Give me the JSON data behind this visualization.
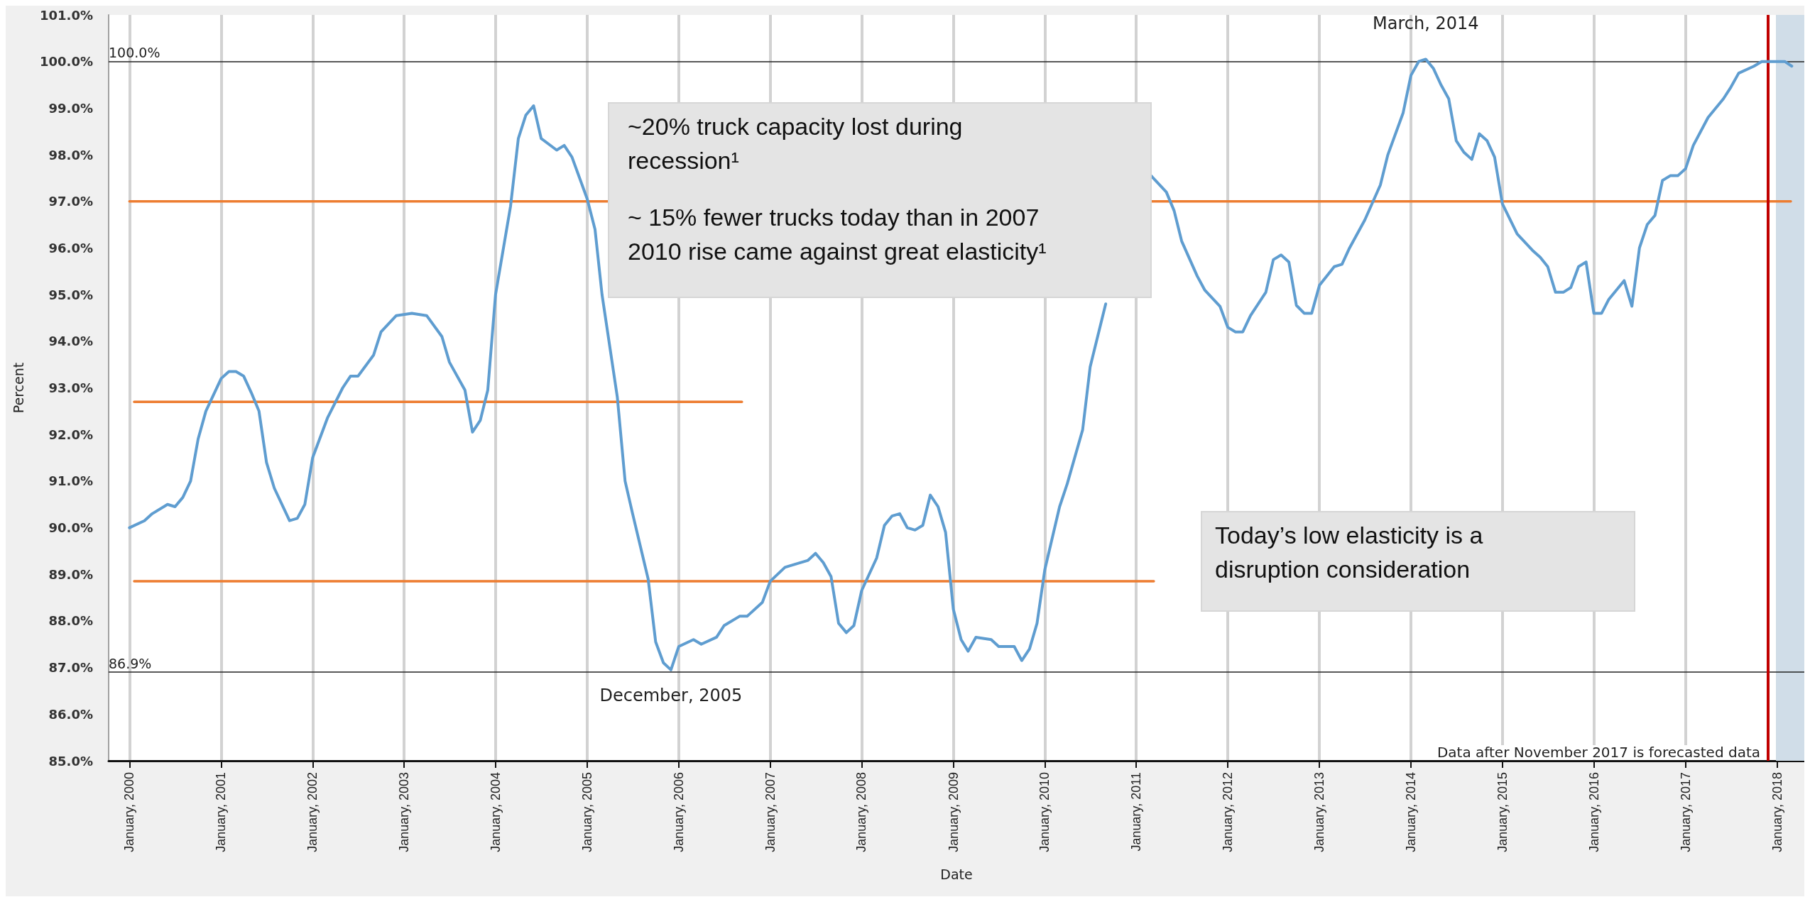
{
  "chart_data": {
    "type": "line",
    "xlabel": "Date",
    "ylabel": "Percent",
    "xlim": [
      "1999-10-10",
      "2018-04-20"
    ],
    "ylim": [
      85,
      101
    ],
    "xticks": [
      {
        "value": "2000-01-01",
        "label": "January, 2000"
      },
      {
        "value": "2001-01-01",
        "label": "January, 2001"
      },
      {
        "value": "2002-01-01",
        "label": "January, 2002"
      },
      {
        "value": "2003-01-01",
        "label": "January, 2003"
      },
      {
        "value": "2004-01-01",
        "label": "January, 2004"
      },
      {
        "value": "2005-01-01",
        "label": "January, 2005"
      },
      {
        "value": "2006-01-01",
        "label": "January, 2006"
      },
      {
        "value": "2007-01-01",
        "label": "January, 2007"
      },
      {
        "value": "2008-01-01",
        "label": "January, 2008"
      },
      {
        "value": "2009-01-01",
        "label": "January, 2009"
      },
      {
        "value": "2010-01-01",
        "label": "January, 2010"
      },
      {
        "value": "2011-01-01",
        "label": "January, 2011"
      },
      {
        "value": "2012-01-01",
        "label": "January, 2012"
      },
      {
        "value": "2013-01-01",
        "label": "January, 2013"
      },
      {
        "value": "2014-01-01",
        "label": "January, 2014"
      },
      {
        "value": "2015-01-01",
        "label": "January, 2015"
      },
      {
        "value": "2016-01-01",
        "label": "January, 2016"
      },
      {
        "value": "2017-01-01",
        "label": "January, 2017"
      },
      {
        "value": "2018-01-01",
        "label": "January, 2018"
      }
    ],
    "yticks": [
      {
        "value": 85,
        "label": "85.0%"
      },
      {
        "value": 86,
        "label": "86.0%"
      },
      {
        "value": 87,
        "label": "87.0%"
      },
      {
        "value": 88,
        "label": "88.0%"
      },
      {
        "value": 89,
        "label": "89.0%"
      },
      {
        "value": 90,
        "label": "90.0%"
      },
      {
        "value": 91,
        "label": "91.0%"
      },
      {
        "value": 92,
        "label": "92.0%"
      },
      {
        "value": 93,
        "label": "93.0%"
      },
      {
        "value": 94,
        "label": "94.0%"
      },
      {
        "value": 95,
        "label": "95.0%"
      },
      {
        "value": 96,
        "label": "96.0%"
      },
      {
        "value": 97,
        "label": "97.0%"
      },
      {
        "value": 98,
        "label": "98.0%"
      },
      {
        "value": 99,
        "label": "99.0%"
      },
      {
        "value": 100,
        "label": "100.0%"
      },
      {
        "value": 101,
        "label": "101.0%"
      }
    ],
    "grid": "x",
    "series": [
      {
        "color": "#5f9dd0",
        "x": [
          "2000-01",
          "2000-03",
          "2000-04",
          "2000-06",
          "2000-07",
          "2000-08",
          "2000-09",
          "2000-10",
          "2000-11",
          "2001-01",
          "2001-02",
          "2001-03",
          "2001-04",
          "2001-05",
          "2001-06",
          "2001-07",
          "2001-08",
          "2001-10",
          "2001-11",
          "2001-12",
          "2002-01",
          "2002-03",
          "2002-05",
          "2002-06",
          "2002-07",
          "2002-09",
          "2002-10",
          "2002-12",
          "2003-02",
          "2003-04",
          "2003-06",
          "2003-07",
          "2003-09",
          "2003-10",
          "2003-11",
          "2003-12",
          "2004-01",
          "2004-03",
          "2004-04",
          "2004-05",
          "2004-06",
          "2004-07",
          "2004-09",
          "2004-10",
          "2004-11",
          "2005-01",
          "2005-02",
          "2005-03",
          "2005-05",
          "2005-06",
          "2005-07",
          "2005-09",
          "2005-10",
          "2005-11",
          "2005-12",
          "2006-01",
          "2006-03",
          "2006-04",
          "2006-06",
          "2006-07",
          "2006-09",
          "2006-10",
          "2006-12",
          "2007-01",
          "2007-03",
          "2007-05",
          "2007-06",
          "2007-07",
          "2007-08",
          "2007-09",
          "2007-10",
          "2007-11",
          "2007-12",
          "2008-01",
          "2008-03",
          "2008-04",
          "2008-05",
          "2008-06",
          "2008-07",
          "2008-08",
          "2008-09",
          "2008-10",
          "2008-11",
          "2008-12",
          "2009-01",
          "2009-02",
          "2009-03",
          "2009-04",
          "2009-06",
          "2009-07",
          "2009-09",
          "2009-10",
          "2009-11",
          "2009-12",
          "2010-01",
          "2010-03",
          "2010-04",
          "2010-06",
          "2010-07",
          "2010-09",
          "2010-12",
          "2011-03",
          "2011-05",
          "2011-06",
          "2011-07",
          "2011-09",
          "2011-10",
          "2011-12",
          "2012-01",
          "2012-02",
          "2012-03",
          "2012-04",
          "2012-06",
          "2012-07",
          "2012-08",
          "2012-09",
          "2012-10",
          "2012-11",
          "2012-12",
          "2013-01",
          "2013-03",
          "2013-04",
          "2013-05",
          "2013-07",
          "2013-09",
          "2013-10",
          "2013-12",
          "2014-01",
          "2014-02",
          "2014-03",
          "2014-04",
          "2014-05",
          "2014-06",
          "2014-07",
          "2014-08",
          "2014-09",
          "2014-10",
          "2014-11",
          "2014-12",
          "2015-01",
          "2015-03",
          "2015-05",
          "2015-06",
          "2015-07",
          "2015-08",
          "2015-09",
          "2015-10",
          "2015-11",
          "2015-12",
          "2016-01",
          "2016-02",
          "2016-03",
          "2016-05",
          "2016-06",
          "2016-07",
          "2016-08",
          "2016-09",
          "2016-10",
          "2016-11",
          "2016-12",
          "2017-01",
          "2017-02",
          "2017-04",
          "2017-06",
          "2017-07",
          "2017-08",
          "2017-10",
          "2017-11",
          "2018-01",
          "2018-02",
          "2018-03"
        ],
        "values": [
          90.0,
          90.15,
          90.3,
          90.5,
          90.45,
          90.65,
          91.0,
          91.9,
          92.5,
          93.2,
          93.35,
          93.35,
          93.25,
          92.9,
          92.5,
          91.4,
          90.85,
          90.15,
          90.2,
          90.5,
          91.5,
          92.35,
          93.0,
          93.25,
          93.25,
          93.7,
          94.2,
          94.55,
          94.6,
          94.55,
          94.1,
          93.55,
          92.95,
          92.05,
          92.3,
          92.95,
          95.0,
          96.9,
          98.35,
          98.85,
          99.05,
          98.35,
          98.1,
          98.2,
          97.95,
          97.05,
          96.4,
          95.0,
          92.8,
          91.0,
          90.3,
          88.9,
          87.55,
          87.1,
          86.95,
          87.45,
          87.6,
          87.5,
          87.65,
          87.9,
          88.1,
          88.1,
          88.4,
          88.85,
          89.15,
          89.25,
          89.3,
          89.45,
          89.25,
          88.95,
          87.95,
          87.75,
          87.9,
          88.65,
          89.35,
          90.05,
          90.25,
          90.3,
          90.0,
          89.95,
          90.05,
          90.7,
          90.45,
          89.9,
          88.25,
          87.6,
          87.35,
          87.65,
          87.6,
          87.45,
          87.45,
          87.15,
          87.4,
          87.95,
          89.1,
          90.45,
          90.95,
          92.1,
          93.45,
          94.8,
          null,
          97.55,
          97.2,
          96.8,
          96.15,
          95.4,
          95.1,
          94.75,
          94.3,
          94.2,
          94.2,
          94.55,
          95.05,
          95.75,
          95.85,
          95.7,
          94.77,
          94.6,
          94.6,
          95.2,
          95.6,
          95.65,
          96.0,
          96.6,
          97.35,
          98.0,
          98.9,
          99.7,
          100.0,
          100.05,
          99.85,
          99.5,
          99.2,
          98.3,
          98.05,
          97.9,
          98.45,
          98.3,
          97.95,
          96.95,
          96.3,
          95.95,
          95.8,
          95.6,
          95.05,
          95.05,
          95.15,
          95.6,
          95.7,
          94.6,
          94.6,
          94.9,
          95.3,
          94.75,
          96.0,
          96.5,
          96.7,
          97.45,
          97.55,
          97.55,
          97.7,
          98.2,
          98.8,
          99.2,
          99.45,
          99.75,
          99.9,
          100.0,
          100.0,
          100.0,
          99.9
        ]
      },
      {
        "color": "#ed7d31",
        "x": [
          "2000-01-01",
          "2018-02-25"
        ],
        "values": [
          97,
          97
        ]
      },
      {
        "color": "#ed7d31",
        "x": [
          "2000-01-20",
          "2006-09-10"
        ],
        "values": [
          92.7,
          92.7
        ]
      },
      {
        "color": "#ed7d31",
        "x": [
          "2000-01-20",
          "2011-03-12"
        ],
        "values": [
          88.85,
          88.85
        ]
      }
    ],
    "ref_lines": [
      {
        "axis": "y",
        "value": 100,
        "label": "100.0%",
        "color": "#222222"
      },
      {
        "axis": "y",
        "value": 86.9,
        "label": "86.9%",
        "color": "#222222"
      },
      {
        "axis": "x",
        "value": "2017-11-25",
        "color": "#c00000"
      }
    ],
    "bands": [
      {
        "axis": "x",
        "from": "2017-12-28",
        "to": "2018-04-20",
        "color": "#d0dde8"
      }
    ],
    "annotations": [
      "~20% truck capacity lost during recession¹",
      "~ 15% fewer trucks today than in 2007",
      "2010 rise came against great elasticity¹",
      "Today’s low elasticity is a disruption consideration",
      "Data after November 2017 is forecasted data",
      {
        "text": "March, 2014",
        "x": "2014-03",
        "y": 100.05
      },
      {
        "text": "December, 2005",
        "x": "2005-12",
        "y": 86.95
      }
    ]
  }
}
